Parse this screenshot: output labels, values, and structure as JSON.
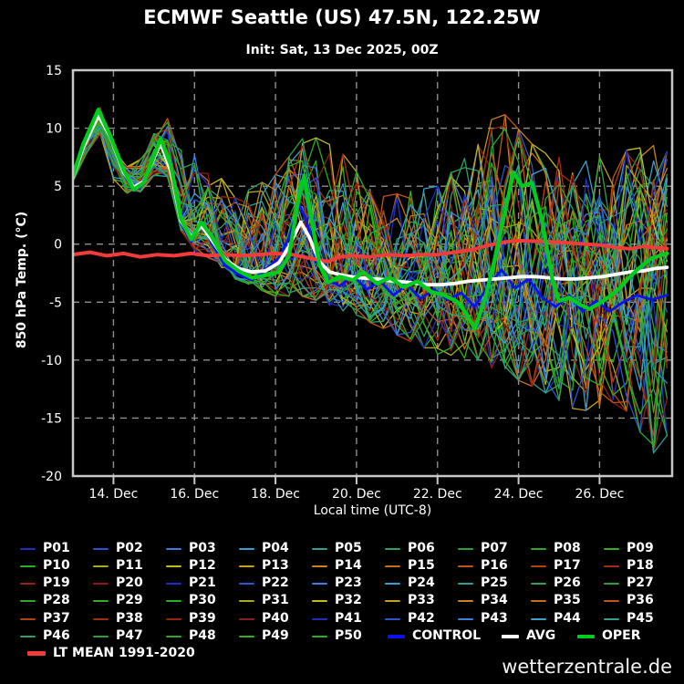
{
  "title": "ECMWF Seattle (US) 47.5N, 122.25W",
  "subtitle": "Init: Sat, 13 Dec 2025, 00Z",
  "watermark": "wetterzentrale.de",
  "colors": {
    "background": "#000000",
    "frame": "#c8c8c8",
    "grid": "#909090",
    "tick_text": "#ffffff",
    "oper": "#00cc1e",
    "avg": "#ffffff",
    "control": "#0a12ee",
    "lt_mean": "#f23b3b"
  },
  "chart_data": {
    "type": "line",
    "ylabel": "850 hPa Temp. (°C)",
    "xlabel": "Local time (UTC-8)",
    "ylim": [
      -20,
      15
    ],
    "grid": "dashed",
    "legend_position": "bottom",
    "x_hours_from": "13 Dec 2025 00:00 local (UTC-8)",
    "x_domain_hours": [
      0,
      355
    ],
    "yticks": [
      {
        "v": 15,
        "label": "15"
      },
      {
        "v": 10,
        "label": "10"
      },
      {
        "v": 5,
        "label": "5"
      },
      {
        "v": 0,
        "label": "0"
      },
      {
        "v": -5,
        "label": "-5"
      },
      {
        "v": -10,
        "label": "-10"
      },
      {
        "v": -15,
        "label": "-15"
      },
      {
        "v": -20,
        "label": "-20"
      }
    ],
    "xticks": [
      {
        "t": 24,
        "label": "14. Dec"
      },
      {
        "t": 72,
        "label": "16. Dec"
      },
      {
        "t": 120,
        "label": "18. Dec"
      },
      {
        "t": 168,
        "label": "20. Dec"
      },
      {
        "t": 216,
        "label": "22. Dec"
      },
      {
        "t": 264,
        "label": "24. Dec"
      },
      {
        "t": 312,
        "label": "26. Dec"
      }
    ],
    "series": [
      {
        "name": "CONTROL",
        "color": "#0a12ee",
        "width": 2.8,
        "points": [
          [
            0,
            5.9
          ],
          [
            6,
            8.5
          ],
          [
            15,
            11.3
          ],
          [
            22,
            9.2
          ],
          [
            30,
            6.1
          ],
          [
            36,
            4.6
          ],
          [
            42,
            5.2
          ],
          [
            48,
            7.7
          ],
          [
            52,
            9.0
          ],
          [
            58,
            6.5
          ],
          [
            64,
            1.8
          ],
          [
            70,
            0.2
          ],
          [
            76,
            2.0
          ],
          [
            82,
            0.1
          ],
          [
            90,
            -1.8
          ],
          [
            98,
            -2.6
          ],
          [
            106,
            -3.1
          ],
          [
            114,
            -2.2
          ],
          [
            122,
            -1.2
          ],
          [
            128,
            0.6
          ],
          [
            134,
            3.4
          ],
          [
            138,
            2.2
          ],
          [
            144,
            -1.4
          ],
          [
            150,
            -3.0
          ],
          [
            158,
            -3.6
          ],
          [
            166,
            -2.7
          ],
          [
            174,
            -3.9
          ],
          [
            182,
            -3.2
          ],
          [
            190,
            -4.4
          ],
          [
            198,
            -3.5
          ],
          [
            206,
            -4.7
          ],
          [
            214,
            -3.9
          ],
          [
            222,
            -4.8
          ],
          [
            230,
            -4.2
          ],
          [
            238,
            -5.4
          ],
          [
            246,
            -3.6
          ],
          [
            254,
            -2.2
          ],
          [
            262,
            -3.8
          ],
          [
            270,
            -3.0
          ],
          [
            278,
            -4.6
          ],
          [
            286,
            -5.4
          ],
          [
            294,
            -4.4
          ],
          [
            302,
            -5.8
          ],
          [
            310,
            -4.9
          ],
          [
            318,
            -5.8
          ],
          [
            326,
            -5.0
          ],
          [
            334,
            -4.4
          ],
          [
            343,
            -4.8
          ],
          [
            352,
            -4.4
          ]
        ]
      },
      {
        "name": "LT MEAN 1991-2020",
        "color": "#f23b3b",
        "width": 4.0,
        "points": [
          [
            0,
            -0.9
          ],
          [
            10,
            -0.7
          ],
          [
            20,
            -1.0
          ],
          [
            30,
            -0.8
          ],
          [
            40,
            -1.1
          ],
          [
            50,
            -0.9
          ],
          [
            60,
            -1.0
          ],
          [
            70,
            -0.8
          ],
          [
            80,
            -1.0
          ],
          [
            90,
            -0.9
          ],
          [
            100,
            -1.0
          ],
          [
            110,
            -0.9
          ],
          [
            120,
            -0.8
          ],
          [
            130,
            -0.9
          ],
          [
            140,
            -1.2
          ],
          [
            151,
            -1.5
          ],
          [
            158,
            -1.1
          ],
          [
            166,
            -1.0
          ],
          [
            176,
            -1.1
          ],
          [
            186,
            -0.9
          ],
          [
            196,
            -1.0
          ],
          [
            206,
            -0.9
          ],
          [
            216,
            -0.9
          ],
          [
            226,
            -0.7
          ],
          [
            236,
            -0.5
          ],
          [
            246,
            -0.1
          ],
          [
            256,
            0.2
          ],
          [
            264,
            0.3
          ],
          [
            274,
            0.25
          ],
          [
            284,
            0.2
          ],
          [
            294,
            0.1
          ],
          [
            304,
            0.0
          ],
          [
            314,
            -0.1
          ],
          [
            322,
            -0.3
          ],
          [
            330,
            -0.4
          ],
          [
            338,
            -0.2
          ],
          [
            345,
            -0.3
          ],
          [
            352,
            -0.4
          ]
        ]
      },
      {
        "name": "AVG",
        "color": "#ffffff",
        "width": 3.8,
        "points": [
          [
            0,
            5.8
          ],
          [
            6,
            8.3
          ],
          [
            15,
            11.1
          ],
          [
            22,
            9.3
          ],
          [
            30,
            6.2
          ],
          [
            36,
            4.9
          ],
          [
            42,
            5.4
          ],
          [
            48,
            7.4
          ],
          [
            52,
            8.7
          ],
          [
            58,
            6.3
          ],
          [
            64,
            2.0
          ],
          [
            70,
            0.6
          ],
          [
            76,
            1.6
          ],
          [
            82,
            0.4
          ],
          [
            90,
            -1.3
          ],
          [
            98,
            -2.1
          ],
          [
            106,
            -2.4
          ],
          [
            114,
            -2.3
          ],
          [
            122,
            -1.6
          ],
          [
            128,
            -0.2
          ],
          [
            135,
            1.9
          ],
          [
            140,
            0.6
          ],
          [
            146,
            -1.5
          ],
          [
            152,
            -2.4
          ],
          [
            160,
            -2.7
          ],
          [
            170,
            -2.9
          ],
          [
            180,
            -3.0
          ],
          [
            190,
            -3.2
          ],
          [
            200,
            -3.3
          ],
          [
            210,
            -3.5
          ],
          [
            218,
            -3.5
          ],
          [
            226,
            -3.4
          ],
          [
            234,
            -3.2
          ],
          [
            242,
            -3.1
          ],
          [
            250,
            -3.0
          ],
          [
            258,
            -2.9
          ],
          [
            266,
            -2.8
          ],
          [
            274,
            -2.8
          ],
          [
            282,
            -2.9
          ],
          [
            290,
            -3.0
          ],
          [
            298,
            -3.0
          ],
          [
            306,
            -2.9
          ],
          [
            314,
            -2.8
          ],
          [
            322,
            -2.6
          ],
          [
            330,
            -2.4
          ],
          [
            338,
            -2.3
          ],
          [
            345,
            -2.1
          ],
          [
            352,
            -2.0
          ]
        ]
      },
      {
        "name": "OPER",
        "color": "#00cc1e",
        "width": 4.2,
        "points": [
          [
            0,
            5.9
          ],
          [
            6,
            8.6
          ],
          [
            15,
            11.6
          ],
          [
            22,
            9.4
          ],
          [
            30,
            6.4
          ],
          [
            36,
            4.7
          ],
          [
            42,
            5.3
          ],
          [
            48,
            7.6
          ],
          [
            52,
            9.1
          ],
          [
            58,
            6.8
          ],
          [
            64,
            2.2
          ],
          [
            70,
            0.4
          ],
          [
            76,
            1.9
          ],
          [
            82,
            0.7
          ],
          [
            90,
            -1.4
          ],
          [
            98,
            -2.3
          ],
          [
            106,
            -2.9
          ],
          [
            114,
            -2.7
          ],
          [
            122,
            -2.4
          ],
          [
            128,
            -1.0
          ],
          [
            134,
            4.2
          ],
          [
            137,
            5.9
          ],
          [
            141,
            2.5
          ],
          [
            146,
            -1.8
          ],
          [
            151,
            -3.3
          ],
          [
            158,
            -2.8
          ],
          [
            166,
            -3.1
          ],
          [
            172,
            -2.4
          ],
          [
            180,
            -3.4
          ],
          [
            188,
            -2.9
          ],
          [
            196,
            -3.7
          ],
          [
            204,
            -3.2
          ],
          [
            212,
            -4.1
          ],
          [
            220,
            -4.4
          ],
          [
            228,
            -5.0
          ],
          [
            234,
            -6.2
          ],
          [
            238,
            -7.3
          ],
          [
            244,
            -4.8
          ],
          [
            250,
            -1.2
          ],
          [
            256,
            2.8
          ],
          [
            261,
            6.2
          ],
          [
            266,
            5.0
          ],
          [
            272,
            5.3
          ],
          [
            278,
            2.0
          ],
          [
            284,
            -3.0
          ],
          [
            288,
            -4.9
          ],
          [
            294,
            -4.6
          ],
          [
            300,
            -5.2
          ],
          [
            306,
            -5.6
          ],
          [
            312,
            -5.1
          ],
          [
            318,
            -4.5
          ],
          [
            324,
            -3.8
          ],
          [
            330,
            -2.8
          ],
          [
            336,
            -2.0
          ],
          [
            343,
            -1.2
          ],
          [
            352,
            -0.8
          ]
        ]
      }
    ],
    "ensemble": {
      "labels": [
        "P01",
        "P02",
        "P03",
        "P04",
        "P05",
        "P06",
        "P07",
        "P08",
        "P09",
        "P10",
        "P11",
        "P12",
        "P13",
        "P14",
        "P15",
        "P16",
        "P17",
        "P18",
        "P19",
        "P20",
        "P21",
        "P22",
        "P23",
        "P24",
        "P25",
        "P26",
        "P27",
        "P28",
        "P29",
        "P30",
        "P31",
        "P32",
        "P33",
        "P34",
        "P35",
        "P36",
        "P37",
        "P38",
        "P39",
        "P40",
        "P41",
        "P42",
        "P43",
        "P44",
        "P45",
        "P46",
        "P47",
        "P48",
        "P49",
        "P50"
      ],
      "color_cycle": [
        "#1e2fc0",
        "#2a55d4",
        "#3c7fe0",
        "#3aa0cc",
        "#2f9f95",
        "#2f9f66",
        "#2f9f3e",
        "#2fa72a",
        "#35ae22",
        "#25b125",
        "#a4ad1e",
        "#c2bd1e",
        "#c4a01e",
        "#c7861e",
        "#c76d1e",
        "#c0561a",
        "#b44114",
        "#a42f10",
        "#962410",
        "#8a1d15"
      ],
      "member_width": 1.3,
      "seed": 11,
      "members_note": "50 perturbed members drawn procedurally around AVG within the observed plume envelope",
      "envelope": {
        "t": [
          0,
          15,
          24,
          36,
          54,
          66,
          84,
          96,
          120,
          138,
          156,
          180,
          216,
          240,
          252,
          276,
          300,
          324,
          344,
          352
        ],
        "min": [
          5.4,
          10.0,
          5.6,
          3.8,
          7.0,
          0.0,
          -1.5,
          -3.0,
          -4.5,
          -4.5,
          -5.5,
          -7.0,
          -9.5,
          -10.0,
          -11.0,
          -12.5,
          -14.5,
          -13.5,
          -18.0,
          -16.5
        ],
        "max": [
          6.3,
          12.3,
          7.6,
          6.2,
          11.2,
          9.0,
          6.5,
          4.0,
          6.0,
          9.5,
          8.5,
          4.0,
          5.0,
          8.6,
          11.8,
          8.0,
          7.0,
          8.0,
          8.5,
          8.0
        ]
      }
    }
  },
  "legend": {
    "control_label": "CONTROL",
    "avg_label": "AVG",
    "oper_label": "OPER",
    "lt_mean_label": "LT MEAN 1991-2020"
  }
}
